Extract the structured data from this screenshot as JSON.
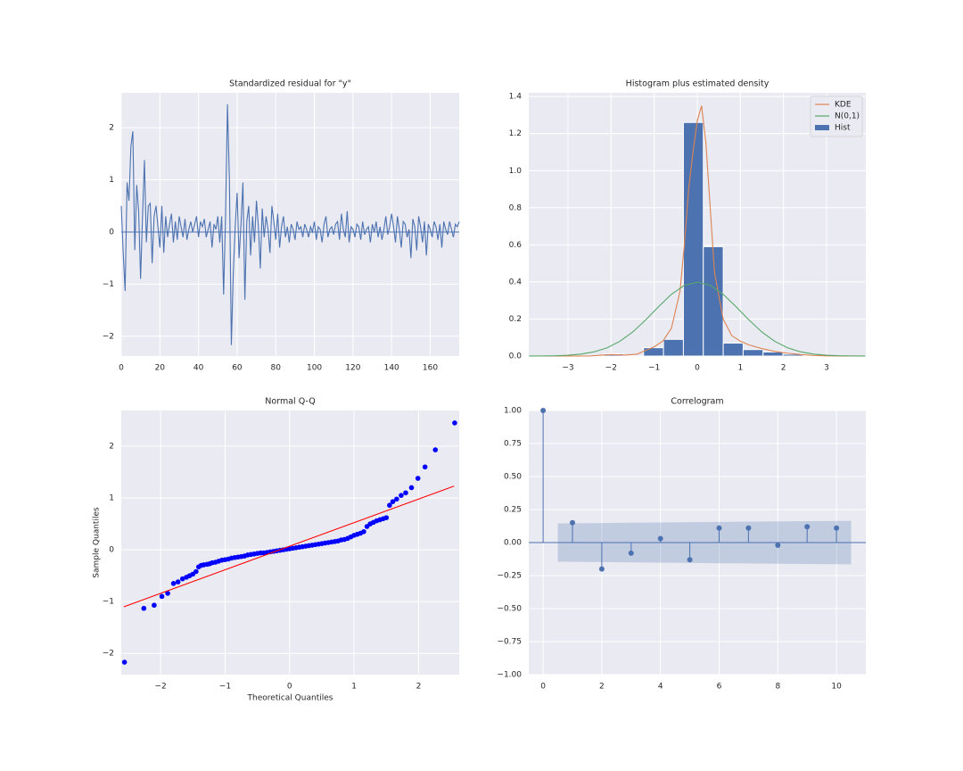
{
  "chart_data": [
    {
      "type": "line",
      "title": "Standardized residual for \"y\"",
      "xlim": [
        0,
        175
      ],
      "ylim": [
        -2.38,
        2.67
      ],
      "xticks": [
        0,
        20,
        40,
        60,
        80,
        100,
        120,
        140,
        160
      ],
      "yticks": [
        {
          "value": -2,
          "label": "−2"
        },
        {
          "value": -1,
          "label": "−1"
        },
        0,
        1,
        2
      ],
      "grid": true,
      "hline": 0,
      "series": [
        {
          "color": "#4c72b0",
          "x": [
            0,
            1,
            2,
            3,
            4,
            5,
            6,
            7,
            8,
            9,
            10,
            11,
            12,
            13,
            14,
            15,
            16,
            17,
            18,
            19,
            20,
            21,
            22,
            23,
            24,
            25,
            26,
            27,
            28,
            29,
            30,
            31,
            32,
            33,
            34,
            35,
            36,
            37,
            38,
            39,
            40,
            41,
            42,
            43,
            44,
            45,
            46,
            47,
            48,
            49,
            50,
            51,
            52,
            53,
            54,
            55,
            56,
            57,
            58,
            59,
            60,
            61,
            62,
            63,
            64,
            65,
            66,
            67,
            68,
            69,
            70,
            71,
            72,
            73,
            74,
            75,
            76,
            77,
            78,
            79,
            80,
            81,
            82,
            83,
            84,
            85,
            86,
            87,
            88,
            89,
            90,
            91,
            92,
            93,
            94,
            95,
            96,
            97,
            98,
            99,
            100,
            101,
            102,
            103,
            104,
            105,
            106,
            107,
            108,
            109,
            110,
            111,
            112,
            113,
            114,
            115,
            116,
            117,
            118,
            119,
            120,
            121,
            122,
            123,
            124,
            125,
            126,
            127,
            128,
            129,
            130,
            131,
            132,
            133,
            134,
            135,
            136,
            137,
            138,
            139,
            140,
            141,
            142,
            143,
            144,
            145,
            146,
            147,
            148,
            149,
            150,
            151,
            152,
            153,
            154,
            155,
            156,
            157,
            158,
            159,
            160,
            161,
            162,
            163,
            164,
            165,
            166,
            167,
            168,
            169,
            170,
            171,
            172,
            173,
            174,
            175
          ],
          "values": [
            0.5,
            -0.4,
            -1.13,
            0.95,
            0.6,
            1.65,
            1.93,
            -0.35,
            0.9,
            0.4,
            -0.9,
            0.3,
            1.38,
            -0.2,
            0.5,
            0.55,
            -0.6,
            0.3,
            0.5,
            0.1,
            -0.3,
            0.5,
            -0.4,
            0.3,
            -0.1,
            0.15,
            0.35,
            -0.2,
            0.2,
            -0.15,
            0.3,
            0.1,
            -0.1,
            0.25,
            -0.15,
            0.05,
            0.2,
            0,
            0.15,
            0.3,
            -0.1,
            0.2,
            0.1,
            0.25,
            -0.1,
            0.05,
            0.2,
            -0.3,
            0.15,
            0.05,
            0.3,
            -0.2,
            0.3,
            -1.2,
            0.3,
            2.45,
            1.0,
            -2.17,
            -0.8,
            0.1,
            0.75,
            -0.5,
            0.15,
            0.95,
            -1.3,
            0.2,
            0.5,
            -0.45,
            0.3,
            -0.2,
            0.6,
            0.1,
            -0.7,
            0.45,
            -0.1,
            0.3,
            0.05,
            -0.4,
            0.5,
            0.2,
            -0.15,
            0.35,
            -0.3,
            0.1,
            0.3,
            -0.1,
            0.1,
            -0.2,
            0.15,
            0.05,
            -0.15,
            0.2,
            0.05,
            0.1,
            -0.1,
            0.15,
            0.05,
            -0.1,
            0.1,
            0,
            0.2,
            -0.15,
            0.1,
            0.05,
            -0.2,
            0.15,
            0.3,
            -0.1,
            0.05,
            0.1,
            -0.05,
            0.15,
            0.2,
            -0.15,
            0.35,
            0.05,
            -0.1,
            0.4,
            -0.2,
            0.1,
            0.05,
            -0.1,
            0.15,
            0.1,
            -0.15,
            0.2,
            -0.05,
            0.05,
            0.1,
            -0.2,
            0.15,
            0,
            0.2,
            -0.1,
            0.1,
            -0.15,
            0.05,
            0.3,
            -0.05,
            0.1,
            0.35,
            0.1,
            -0.2,
            0.3,
            0.05,
            -0.3,
            0.2,
            0.15,
            -0.1,
            0.05,
            -0.5,
            0.25,
            0.1,
            -0.35,
            0.3,
            0.1,
            -0.2,
            0.2,
            -0.45,
            0.15,
            0.05,
            -0.1,
            0.2,
            0.1,
            -0.15,
            0.15,
            -0.3,
            0.2,
            0.05,
            -0.05,
            0.2,
            0.05,
            -0.1,
            0.15,
            0.1,
            0.2
          ]
        }
      ]
    },
    {
      "type": "histogram",
      "title": "Histogram plus estimated density",
      "xlim": [
        -3.91,
        3.91
      ],
      "ylim": [
        0,
        1.42
      ],
      "xticks": [
        {
          "value": -3,
          "label": "−3"
        },
        {
          "value": -2,
          "label": "−2"
        },
        {
          "value": -1,
          "label": "−1"
        },
        0,
        1,
        2,
        3
      ],
      "yticks": [
        {
          "value": 0,
          "label": "0.0"
        },
        {
          "value": 0.2,
          "label": "0.2"
        },
        {
          "value": 0.4,
          "label": "0.4"
        },
        {
          "value": 0.6,
          "label": "0.6"
        },
        {
          "value": 0.8,
          "label": "0.8"
        },
        {
          "value": 1.0,
          "label": "1.0"
        },
        {
          "value": 1.2,
          "label": "1.2"
        },
        {
          "value": 1.4,
          "label": "1.4"
        }
      ],
      "grid": true,
      "legend": "upper right",
      "series": [
        {
          "name": "KDE",
          "color": "#dd8452",
          "x": [
            -3.9,
            -2.5,
            -2.2,
            -2.0,
            -1.7,
            -1.4,
            -1.2,
            -1.0,
            -0.8,
            -0.6,
            -0.4,
            -0.3,
            -0.2,
            -0.1,
            0,
            0.1,
            0.2,
            0.3,
            0.4,
            0.6,
            0.8,
            1.0,
            1.2,
            1.5,
            1.8,
            2.1,
            2.4,
            2.7,
            3.0,
            3.9
          ],
          "values": [
            0,
            0,
            0.005,
            0.008,
            0.005,
            0.01,
            0.03,
            0.05,
            0.08,
            0.15,
            0.35,
            0.6,
            0.9,
            1.1,
            1.27,
            1.35,
            1.15,
            0.8,
            0.45,
            0.2,
            0.11,
            0.08,
            0.06,
            0.04,
            0.025,
            0.015,
            0.008,
            0.003,
            0.001,
            0
          ]
        },
        {
          "name": "N(0,1)",
          "color": "#55a868",
          "x": [
            -3.9,
            -3.6,
            -3.3,
            -3.0,
            -2.7,
            -2.4,
            -2.1,
            -1.8,
            -1.5,
            -1.2,
            -0.9,
            -0.6,
            -0.3,
            0,
            0.3,
            0.6,
            0.9,
            1.2,
            1.5,
            1.8,
            2.1,
            2.4,
            2.7,
            3.0,
            3.3,
            3.6,
            3.9
          ],
          "values": [
            0.0002,
            0.0006,
            0.0017,
            0.0044,
            0.0104,
            0.0224,
            0.044,
            0.079,
            0.1295,
            0.1942,
            0.2661,
            0.3332,
            0.3814,
            0.3989,
            0.3814,
            0.3332,
            0.2661,
            0.1942,
            0.1295,
            0.079,
            0.044,
            0.0224,
            0.0104,
            0.0044,
            0.0017,
            0.0006,
            0.0002
          ]
        }
      ],
      "hist": {
        "name": "Hist",
        "color": "#4c72b0",
        "bins": [
          -2.17,
          -1.708,
          -1.246,
          -0.784,
          -0.322,
          0.14,
          0.602,
          1.064,
          1.526,
          1.988,
          2.45
        ],
        "counts": [
          0.012,
          0,
          0.045,
          0.09,
          1.26,
          0.59,
          0.07,
          0.035,
          0.022,
          0.01
        ]
      }
    },
    {
      "type": "scatter",
      "title": "Normal Q-Q",
      "xlabel": "Theoretical Quantiles",
      "ylabel": "Sample Quantiles",
      "xlim": [
        -2.61,
        2.63
      ],
      "ylim": [
        -2.41,
        2.69
      ],
      "xticks": [
        {
          "value": -2,
          "label": "−2"
        },
        {
          "value": -1,
          "label": "−1"
        },
        0,
        1,
        2
      ],
      "yticks": [
        {
          "value": -2,
          "label": "−2"
        },
        {
          "value": -1,
          "label": "−1"
        },
        0,
        1,
        2
      ],
      "grid": true,
      "points": {
        "color": "#0000ff",
        "x": [
          -2.56,
          -2.26,
          -2.1,
          -1.98,
          -1.89,
          -1.8,
          -1.73,
          -1.66,
          -1.6,
          -1.55,
          -1.5,
          -1.45,
          -1.41,
          -1.37,
          -1.33,
          -1.28,
          -1.24,
          -1.2,
          -1.15,
          -1.1,
          -1.05,
          -1.0,
          -0.95,
          -0.9,
          -0.85,
          -0.8,
          -0.75,
          -0.7,
          -0.65,
          -0.6,
          -0.55,
          -0.5,
          -0.45,
          -0.4,
          -0.35,
          -0.3,
          -0.25,
          -0.2,
          -0.15,
          -0.1,
          -0.05,
          0,
          0.05,
          0.1,
          0.15,
          0.2,
          0.25,
          0.3,
          0.35,
          0.4,
          0.45,
          0.5,
          0.55,
          0.6,
          0.65,
          0.7,
          0.75,
          0.8,
          0.85,
          0.9,
          0.95,
          1.0,
          1.05,
          1.1,
          1.15,
          1.2,
          1.25,
          1.3,
          1.35,
          1.4,
          1.45,
          1.5,
          1.55,
          1.6,
          1.66,
          1.73,
          1.8,
          1.89,
          1.99,
          2.1,
          2.26,
          2.56
        ],
        "y": [
          -2.17,
          -1.13,
          -1.07,
          -0.9,
          -0.84,
          -0.65,
          -0.62,
          -0.56,
          -0.53,
          -0.5,
          -0.47,
          -0.42,
          -0.33,
          -0.3,
          -0.29,
          -0.28,
          -0.27,
          -0.25,
          -0.24,
          -0.22,
          -0.2,
          -0.19,
          -0.18,
          -0.16,
          -0.15,
          -0.14,
          -0.13,
          -0.12,
          -0.1,
          -0.09,
          -0.08,
          -0.07,
          -0.06,
          -0.06,
          -0.05,
          -0.04,
          -0.03,
          -0.02,
          -0.01,
          0,
          0.01,
          0.02,
          0.03,
          0.04,
          0.05,
          0.06,
          0.07,
          0.08,
          0.09,
          0.1,
          0.11,
          0.12,
          0.13,
          0.14,
          0.15,
          0.16,
          0.17,
          0.19,
          0.2,
          0.22,
          0.25,
          0.28,
          0.3,
          0.32,
          0.35,
          0.45,
          0.5,
          0.53,
          0.56,
          0.58,
          0.6,
          0.62,
          0.86,
          0.93,
          0.98,
          1.05,
          1.1,
          1.2,
          1.38,
          1.6,
          1.93,
          2.45
        ]
      },
      "line": {
        "color": "#ff0000",
        "x": [
          -2.57,
          2.55
        ],
        "y": [
          -1.1,
          1.23
        ]
      }
    },
    {
      "type": "stem",
      "title": "Correlogram",
      "xlim": [
        -0.49,
        11.0
      ],
      "ylim": [
        -1,
        1
      ],
      "xticks": [
        0,
        2,
        4,
        6,
        8,
        10
      ],
      "yticks": [
        {
          "value": -1,
          "label": "−1.00"
        },
        {
          "value": -0.75,
          "label": "−0.75"
        },
        {
          "value": -0.5,
          "label": "−0.50"
        },
        {
          "value": -0.25,
          "label": "−0.25"
        },
        {
          "value": 0,
          "label": "0.00"
        },
        {
          "value": 0.25,
          "label": "0.25"
        },
        {
          "value": 0.5,
          "label": "0.50"
        },
        {
          "value": 0.75,
          "label": "0.75"
        },
        {
          "value": 1,
          "label": "1.00"
        }
      ],
      "grid": true,
      "hline": 0,
      "color": "#4c72b0",
      "x": [
        0,
        1,
        2,
        3,
        4,
        5,
        6,
        7,
        8,
        9,
        10
      ],
      "values": [
        1,
        0.15,
        -0.2,
        -0.08,
        0.03,
        -0.13,
        0.11,
        0.11,
        -0.02,
        0.12,
        0.11
      ],
      "band": {
        "x": [
          0.5,
          10.5
        ],
        "upper": [
          0.145,
          0.165
        ],
        "lower": [
          -0.145,
          -0.165
        ]
      }
    }
  ]
}
